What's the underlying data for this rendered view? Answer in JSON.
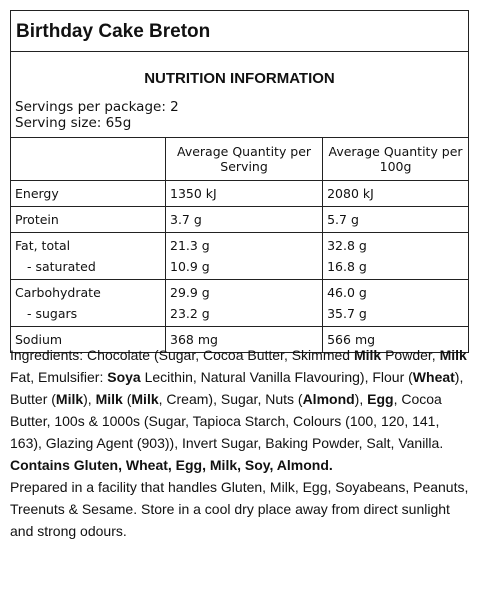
{
  "title": "Birthday Cake Breton",
  "nutrition": {
    "heading": "NUTRITION INFORMATION",
    "servings_per_package": "Servings per package: 2",
    "serving_size": "Serving size: 65g",
    "columns": [
      "Average Quantity per Serving",
      "Average Quantity per 100g"
    ],
    "groups": [
      [
        [
          "Energy",
          "1350 kJ",
          "2080 kJ"
        ]
      ],
      [
        [
          "Protein",
          "3.7 g",
          "5.7 g"
        ]
      ],
      [
        [
          "Fat, total",
          "21.3 g",
          "32.8 g"
        ],
        [
          "- saturated",
          "10.9 g",
          "16.8 g"
        ]
      ],
      [
        [
          "Carbohydrate",
          "29.9 g",
          "46.0 g"
        ],
        [
          "- sugars",
          "23.2 g",
          "35.7 g"
        ]
      ],
      [
        [
          "Sodium",
          "368 mg",
          "566 mg"
        ]
      ]
    ]
  },
  "ingredients": [
    {
      "text": "Ingredients: Chocolate (Sugar, Cocoa Butter, Skimmed ",
      "bold": false
    },
    {
      "text": "Milk",
      "bold": true
    },
    {
      "text": " Powder, ",
      "bold": false
    },
    {
      "text": "Milk",
      "bold": true
    },
    {
      "text": " Fat, Emulsifier: ",
      "bold": false
    },
    {
      "text": "Soya",
      "bold": true
    },
    {
      "text": " Lecithin, Natural Vanilla Flavouring), Flour (",
      "bold": false
    },
    {
      "text": "Wheat",
      "bold": true
    },
    {
      "text": "), Butter (",
      "bold": false
    },
    {
      "text": "Milk",
      "bold": true
    },
    {
      "text": "), ",
      "bold": false
    },
    {
      "text": "Milk",
      "bold": true
    },
    {
      "text": " (",
      "bold": false
    },
    {
      "text": "Milk",
      "bold": true
    },
    {
      "text": ", Cream), Sugar, Nuts (",
      "bold": false
    },
    {
      "text": "Almond",
      "bold": true
    },
    {
      "text": "), ",
      "bold": false
    },
    {
      "text": "Egg",
      "bold": true
    },
    {
      "text": ", Cocoa Butter, 100s & 1000s (Sugar, Tapioca Starch, Colours (100, 120, 141, 163), Glazing Agent (903)), Invert Sugar, Baking Powder, Salt, Vanilla.",
      "bold": false
    }
  ],
  "contains": "Contains Gluten, Wheat, Egg, Milk, Soy, Almond.",
  "facility": "Prepared in a facility that handles Gluten, Milk, Egg, Soyabeans, Peanuts, Treenuts & Sesame. Store in a cool dry place away from direct sunlight and strong odours."
}
